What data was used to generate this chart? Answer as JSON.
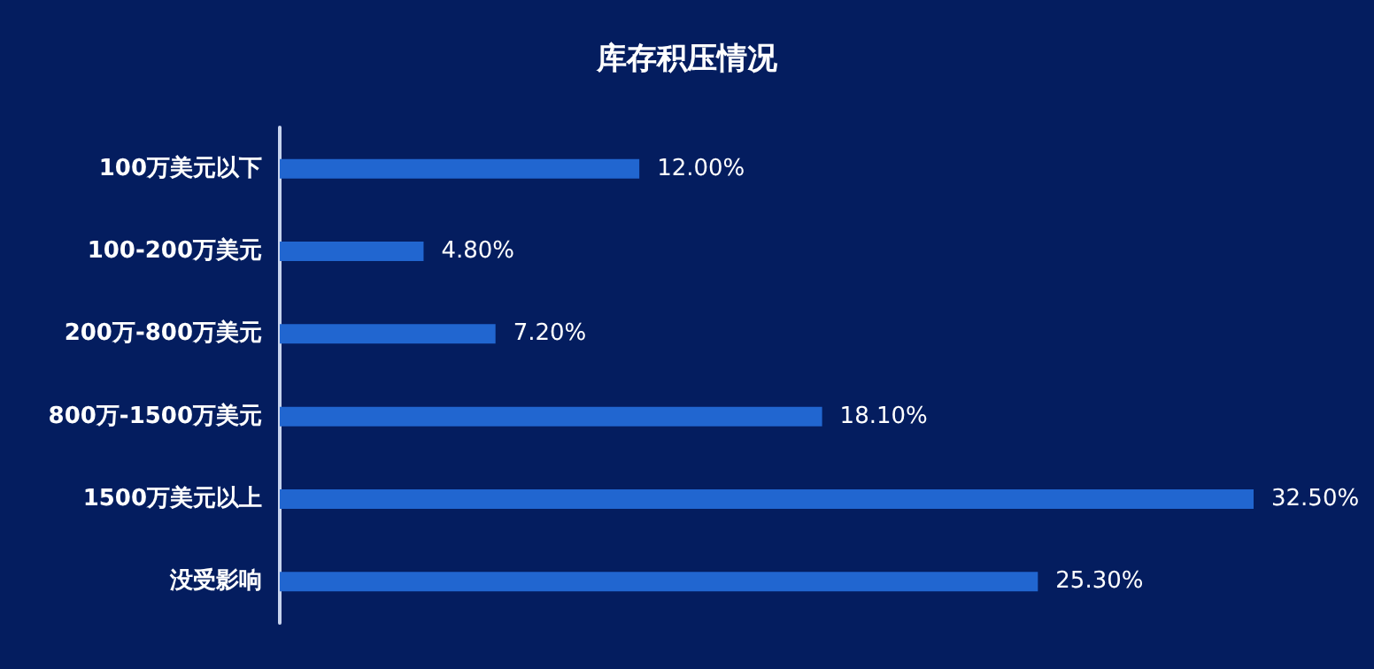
{
  "chart_data": {
    "type": "bar",
    "orientation": "horizontal",
    "title": "库存积压情况",
    "categories": [
      "100万美元以下",
      "100-200万美元",
      "200万-800万美元",
      "800万-1500万美元",
      "1500万美元以上",
      "没受影响"
    ],
    "values": [
      12.0,
      4.8,
      7.2,
      18.1,
      32.5,
      25.3
    ],
    "value_labels": [
      "12.00%",
      "4.80%",
      "7.20%",
      "18.10%",
      "32.50%",
      "25.30%"
    ],
    "color": "#2166d0",
    "grid": false
  }
}
